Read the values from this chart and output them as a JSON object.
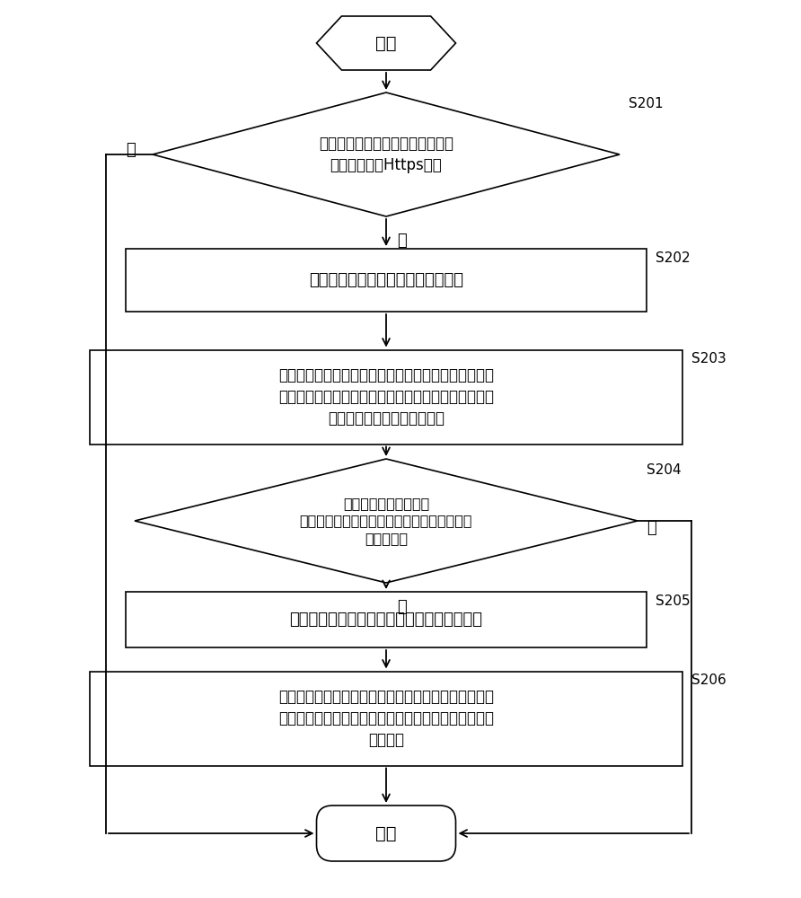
{
  "bg_color": "#ffffff",
  "line_color": "#000000",
  "box_fill": "#ffffff",
  "text_color": "#000000",
  "font_size_chinese": 13,
  "font_size_step": 11,
  "start_end_text": [
    "开始",
    "结束"
  ],
  "step_labels": [
    "S201",
    "S202",
    "S203",
    "S204",
    "S205",
    "S206"
  ],
  "diamond1_text": "接收客户端发起的请求，判断请求\n是否为信任的Https请求",
  "box202_text": "从请求中提取加密后的密码请求信息",
  "box203_text": "对加密后的密码请求信息进行解密，并将解密后的密码\n请求信息发送给密码管理器，以供密码管理器根据密码\n请求信息返回对应的密码信息",
  "diamond4_text": "对密码请求信息中携带\n的令牌进行认证，判断令牌是否为密码管理器\n颁发的令牌",
  "box205_text": "根据密码请求信息查找并返回对应的密码信息",
  "box206_text": "接收密码管理器返回的密码信息，对密码信息进行加密\n后返回给客户端，以供客户端对加密的密码信息进行解\n密后使用",
  "no_label": "否",
  "yes_label": "是"
}
